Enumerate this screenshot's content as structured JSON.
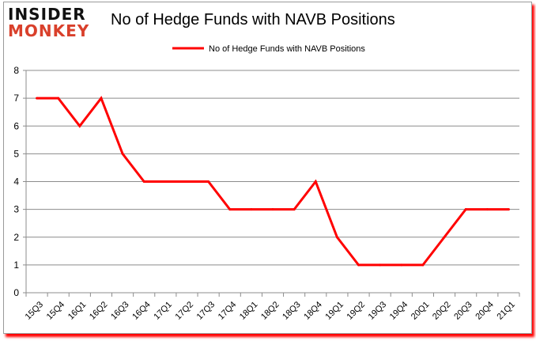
{
  "logo": {
    "line1": "INSIDER",
    "line2": "MONKEY"
  },
  "chart_data": {
    "type": "line",
    "title": "No of Hedge Funds with NAVB Positions",
    "xlabel": "",
    "ylabel": "",
    "categories": [
      "15Q3",
      "15Q4",
      "16Q1",
      "16Q2",
      "16Q3",
      "16Q4",
      "17Q1",
      "17Q2",
      "17Q3",
      "17Q4",
      "18Q1",
      "18Q2",
      "18Q3",
      "18Q4",
      "19Q1",
      "19Q2",
      "19Q3",
      "19Q4",
      "20Q1",
      "20Q2",
      "20Q3",
      "20Q4",
      "21Q1"
    ],
    "series": [
      {
        "name": "No of Hedge Funds with NAVB Positions",
        "color": "#ff0000",
        "values": [
          7,
          7,
          6,
          7,
          5,
          4,
          4,
          4,
          4,
          3,
          3,
          3,
          3,
          4,
          2,
          1,
          1,
          1,
          1,
          2,
          3,
          3,
          3
        ]
      }
    ],
    "ylim": [
      0,
      8
    ],
    "yticks": [
      0,
      1,
      2,
      3,
      4,
      5,
      6,
      7,
      8
    ],
    "grid": true,
    "legend": "top-center"
  }
}
